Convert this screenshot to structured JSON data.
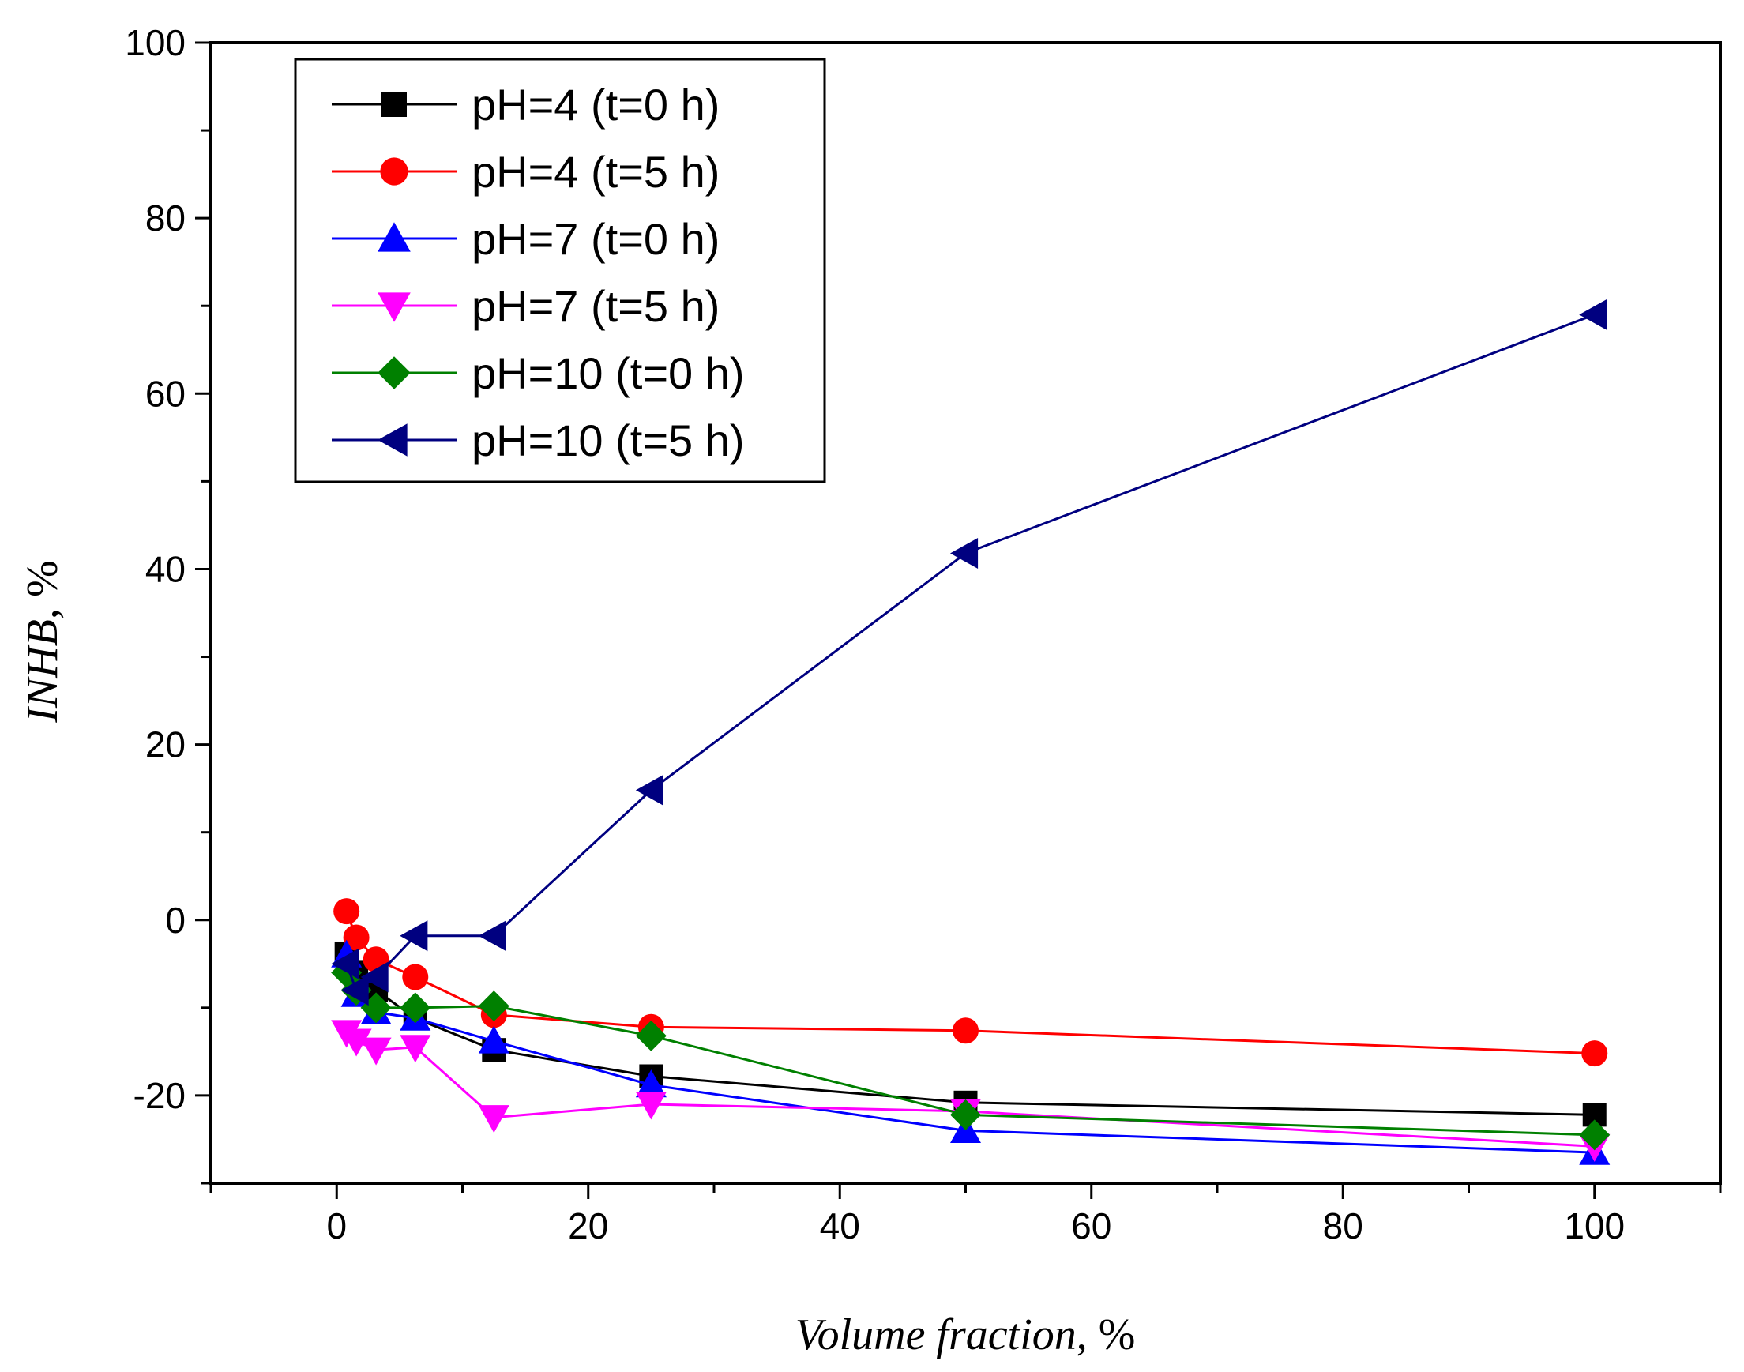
{
  "chart_data": {
    "type": "line",
    "title": "",
    "xlabel_italic": "Volume fraction",
    "xlabel_suffix": ", %",
    "ylabel_italic": "INHB",
    "ylabel_suffix": ", %",
    "xlim": [
      -10,
      110
    ],
    "ylim": [
      -30,
      100
    ],
    "xticks": [
      0,
      20,
      40,
      60,
      80,
      100
    ],
    "yticks": [
      -20,
      0,
      20,
      40,
      60,
      80,
      100
    ],
    "xtick_labels": [
      "0",
      "20",
      "40",
      "60",
      "80",
      "100"
    ],
    "ytick_labels": [
      "-20",
      "0",
      "20",
      "40",
      "60",
      "80",
      "100"
    ],
    "grid": false,
    "legend_position": "top-left",
    "series": [
      {
        "name": "pH=4 (t=0 h)",
        "color": "#000000",
        "marker": "square",
        "x": [
          0.78,
          1.56,
          3.13,
          6.25,
          12.5,
          25,
          50,
          100
        ],
        "y": [
          -3.8,
          -6.0,
          -8.0,
          -11.2,
          -14.8,
          -17.8,
          -20.8,
          -22.2
        ]
      },
      {
        "name": "pH=4 (t=5 h)",
        "color": "#ff0000",
        "marker": "circle",
        "x": [
          0.78,
          1.56,
          3.13,
          6.25,
          12.5,
          25,
          50,
          100
        ],
        "y": [
          1.0,
          -2.0,
          -4.5,
          -6.5,
          -10.8,
          -12.2,
          -12.6,
          -15.2
        ]
      },
      {
        "name": "pH=7 (t=0 h)",
        "color": "#0000ff",
        "marker": "triangle-up",
        "x": [
          0.78,
          1.56,
          3.13,
          6.25,
          12.5,
          25,
          50,
          100
        ],
        "y": [
          -4.0,
          -8.5,
          -10.5,
          -11.2,
          -13.8,
          -18.8,
          -24.0,
          -26.5
        ]
      },
      {
        "name": "pH=7 (t=5 h)",
        "color": "#ff00ff",
        "marker": "triangle-down",
        "x": [
          0.78,
          1.56,
          3.13,
          6.25,
          12.5,
          25,
          50,
          100
        ],
        "y": [
          -12.8,
          -13.8,
          -14.8,
          -14.5,
          -22.5,
          -21.0,
          -21.8,
          -25.8
        ]
      },
      {
        "name": "pH=10 (t=0 h)",
        "color": "#008000",
        "marker": "diamond",
        "x": [
          0.78,
          1.56,
          3.13,
          6.25,
          12.5,
          25,
          50,
          100
        ],
        "y": [
          -6.0,
          -8.0,
          -10.0,
          -10.0,
          -9.8,
          -13.2,
          -22.2,
          -24.5
        ]
      },
      {
        "name": "pH=10 (t=5 h)",
        "color": "#000080",
        "marker": "triangle-left",
        "x": [
          0.78,
          1.56,
          3.13,
          6.25,
          12.5,
          25,
          50,
          100
        ],
        "y": [
          -5.0,
          -8.0,
          -6.5,
          -1.8,
          -1.8,
          14.8,
          41.8,
          69.0
        ]
      }
    ]
  }
}
